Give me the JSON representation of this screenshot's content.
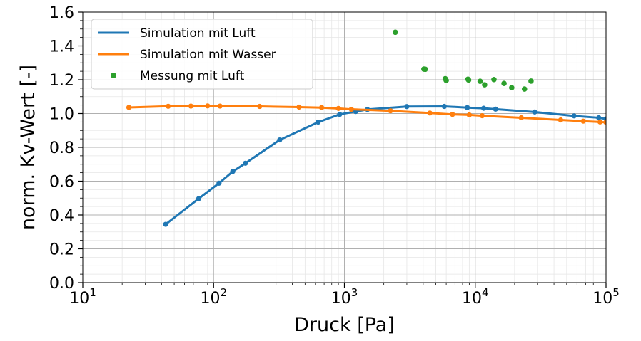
{
  "chart_data": {
    "type": "line",
    "title": "",
    "xlabel": "Druck [Pa]",
    "ylabel": "norm. Kv-Wert [-]",
    "xscale": "log",
    "xlim": [
      10,
      100000
    ],
    "ylim": [
      0.0,
      1.6
    ],
    "x_ticks": [
      {
        "base": "10",
        "exp": "1"
      },
      {
        "base": "10",
        "exp": "2"
      },
      {
        "base": "10",
        "exp": "3"
      },
      {
        "base": "10",
        "exp": "4"
      },
      {
        "base": "10",
        "exp": "5"
      }
    ],
    "y_ticks": [
      "0.0",
      "0.2",
      "0.4",
      "0.6",
      "0.8",
      "1.0",
      "1.2",
      "1.4",
      "1.6"
    ],
    "grid": true,
    "legend_position": "top-left",
    "series": [
      {
        "name": "Simulation mit Luft",
        "color": "#1f77b4",
        "style": "line-marker",
        "x": [
          43,
          77,
          110,
          140,
          175,
          320,
          630,
          920,
          1220,
          1500,
          3000,
          5800,
          8700,
          11600,
          14300,
          28500,
          57000,
          88000,
          100000
        ],
        "y": [
          0.345,
          0.497,
          0.588,
          0.657,
          0.706,
          0.844,
          0.949,
          0.995,
          1.012,
          1.024,
          1.041,
          1.042,
          1.035,
          1.031,
          1.026,
          1.009,
          0.986,
          0.975,
          0.968
        ]
      },
      {
        "name": "Simulation mit Wasser",
        "color": "#ff7f0e",
        "style": "line-marker",
        "x": [
          22.5,
          45,
          67,
          90,
          112,
          225,
          450,
          670,
          900,
          1130,
          2250,
          4500,
          6700,
          9000,
          11300,
          22500,
          45000,
          67000,
          90000,
          100000
        ],
        "y": [
          1.036,
          1.043,
          1.044,
          1.045,
          1.044,
          1.042,
          1.038,
          1.035,
          1.03,
          1.025,
          1.016,
          1.003,
          0.995,
          0.992,
          0.987,
          0.975,
          0.962,
          0.955,
          0.95,
          0.948
        ]
      },
      {
        "name": "Messung mit Luft",
        "color": "#2ca02c",
        "style": "scatter",
        "x": [
          2450,
          4050,
          4150,
          5900,
          6000,
          8800,
          8900,
          10900,
          11800,
          13900,
          16600,
          19000,
          23800,
          26700
        ],
        "y": [
          1.481,
          1.263,
          1.262,
          1.206,
          1.196,
          1.203,
          1.198,
          1.191,
          1.17,
          1.201,
          1.178,
          1.153,
          1.145,
          1.192
        ]
      }
    ]
  }
}
